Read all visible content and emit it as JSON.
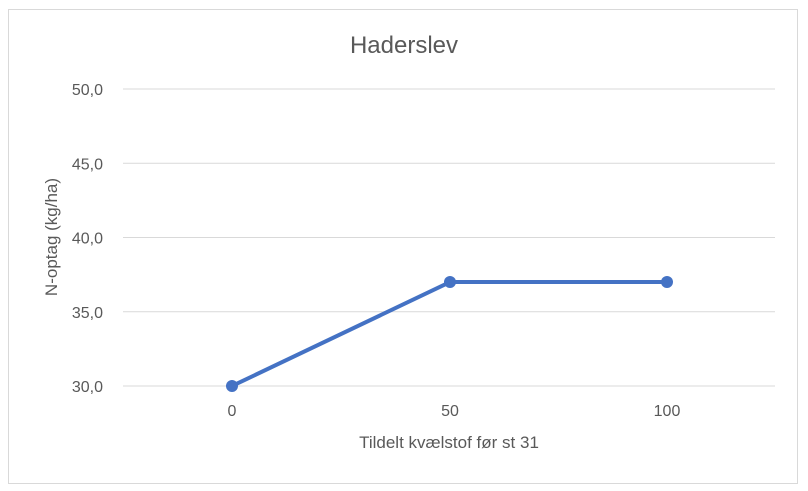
{
  "chart_data": {
    "type": "line",
    "title": "Haderslev",
    "xlabel": "Tildelt kvælstof før st 31",
    "ylabel": "N-optag (kg/ha)",
    "categories": [
      "0",
      "50",
      "100"
    ],
    "series": [
      {
        "values": [
          30.0,
          37.0,
          37.0
        ],
        "color": "#4472c4"
      }
    ],
    "ylim": [
      30,
      50
    ],
    "yticks": [
      "30,0",
      "35,0",
      "40,0",
      "45,0",
      "50,0"
    ],
    "ytick_values": [
      30,
      35,
      40,
      45,
      50
    ],
    "grid": true,
    "legend": "none"
  }
}
